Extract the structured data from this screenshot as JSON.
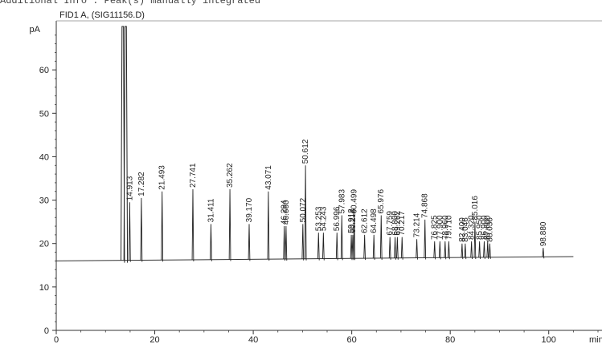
{
  "header_note": "Additional Info : Peak(s) manually integrated",
  "chart_data": {
    "type": "line",
    "title": "FID1 A, (SIG11156.D)",
    "ylabel": "pA",
    "xlabel": "min",
    "xlim": [
      0,
      110
    ],
    "ylim": [
      0,
      70
    ],
    "x_ticks": [
      0,
      20,
      40,
      60,
      80,
      100
    ],
    "y_ticks": [
      0,
      10,
      20,
      30,
      40,
      50,
      60
    ],
    "x_tick_labels": [
      "0",
      "20",
      "40",
      "60",
      "80",
      "100"
    ],
    "y_tick_labels": [
      "0",
      "10",
      "20",
      "30",
      "40",
      "50",
      "60"
    ],
    "baseline": {
      "start_x": 0,
      "end_x": 105,
      "start_y": 16.0,
      "end_y": 17.0
    },
    "solvent_peaks": [
      {
        "rt": 13.5,
        "height": 70
      },
      {
        "rt": 14.1,
        "height": 70
      }
    ],
    "peaks": [
      {
        "rt": 14.913,
        "label": "14.913",
        "height": 29.5
      },
      {
        "rt": 17.282,
        "label": "17.282",
        "height": 30.5
      },
      {
        "rt": 21.493,
        "label": "21.493",
        "height": 32.0
      },
      {
        "rt": 27.741,
        "label": "27.741",
        "height": 32.5
      },
      {
        "rt": 31.411,
        "label": "31.411",
        "height": 24.5
      },
      {
        "rt": 35.262,
        "label": "35.262",
        "height": 32.5
      },
      {
        "rt": 39.17,
        "label": "39.170",
        "height": 24.5
      },
      {
        "rt": 43.071,
        "label": "43.071",
        "height": 32.0
      },
      {
        "rt": 46.294,
        "label": "46.294",
        "height": 24.0
      },
      {
        "rt": 46.66,
        "label": "46.660",
        "height": 24.0
      },
      {
        "rt": 50.072,
        "label": "50.072",
        "height": 24.5
      },
      {
        "rt": 50.612,
        "label": "50.612",
        "height": 38.0
      },
      {
        "rt": 53.253,
        "label": "53.253",
        "height": 22.5
      },
      {
        "rt": 54.243,
        "label": "54.243",
        "height": 22.5
      },
      {
        "rt": 56.996,
        "label": "56.996",
        "height": 22.5
      },
      {
        "rt": 57.983,
        "label": "57.983",
        "height": 26.5
      },
      {
        "rt": 59.912,
        "label": "59.912",
        "height": 22.0
      },
      {
        "rt": 60.213,
        "label": "60.213",
        "height": 22.0
      },
      {
        "rt": 60.499,
        "label": "60.499",
        "height": 26.5
      },
      {
        "rt": 62.612,
        "label": "62.612",
        "height": 22.0
      },
      {
        "rt": 64.498,
        "label": "64.498",
        "height": 22.0
      },
      {
        "rt": 65.976,
        "label": "65.976",
        "height": 26.5
      },
      {
        "rt": 67.759,
        "label": "67.759",
        "height": 21.5
      },
      {
        "rt": 68.8,
        "label": "68.800",
        "height": 21.5
      },
      {
        "rt": 69.262,
        "label": "69.262",
        "height": 21.5
      },
      {
        "rt": 70.217,
        "label": "70.217",
        "height": 21.5
      },
      {
        "rt": 73.214,
        "label": "73.214",
        "height": 21.0
      },
      {
        "rt": 74.868,
        "label": "74.868",
        "height": 25.5
      },
      {
        "rt": 76.825,
        "label": "76.825",
        "height": 20.5
      },
      {
        "rt": 77.9,
        "label": "77.900",
        "height": 20.5
      },
      {
        "rt": 78.96,
        "label": "78.960",
        "height": 20.5
      },
      {
        "rt": 79.71,
        "label": "79.710",
        "height": 20.5
      },
      {
        "rt": 82.4,
        "label": "82.400",
        "height": 20.0
      },
      {
        "rt": 83.046,
        "label": "83.046",
        "height": 20.0
      },
      {
        "rt": 84.32,
        "label": "84.320",
        "height": 20.5
      },
      {
        "rt": 85.016,
        "label": "85.016",
        "height": 25.0
      },
      {
        "rt": 85.95,
        "label": "85.950",
        "height": 20.5
      },
      {
        "rt": 86.9,
        "label": "86.900",
        "height": 20.5
      },
      {
        "rt": 87.6,
        "label": "87.600",
        "height": 20.5
      },
      {
        "rt": 88.036,
        "label": "88.036",
        "height": 20.0
      },
      {
        "rt": 98.88,
        "label": "98.880",
        "height": 19.0
      }
    ]
  }
}
